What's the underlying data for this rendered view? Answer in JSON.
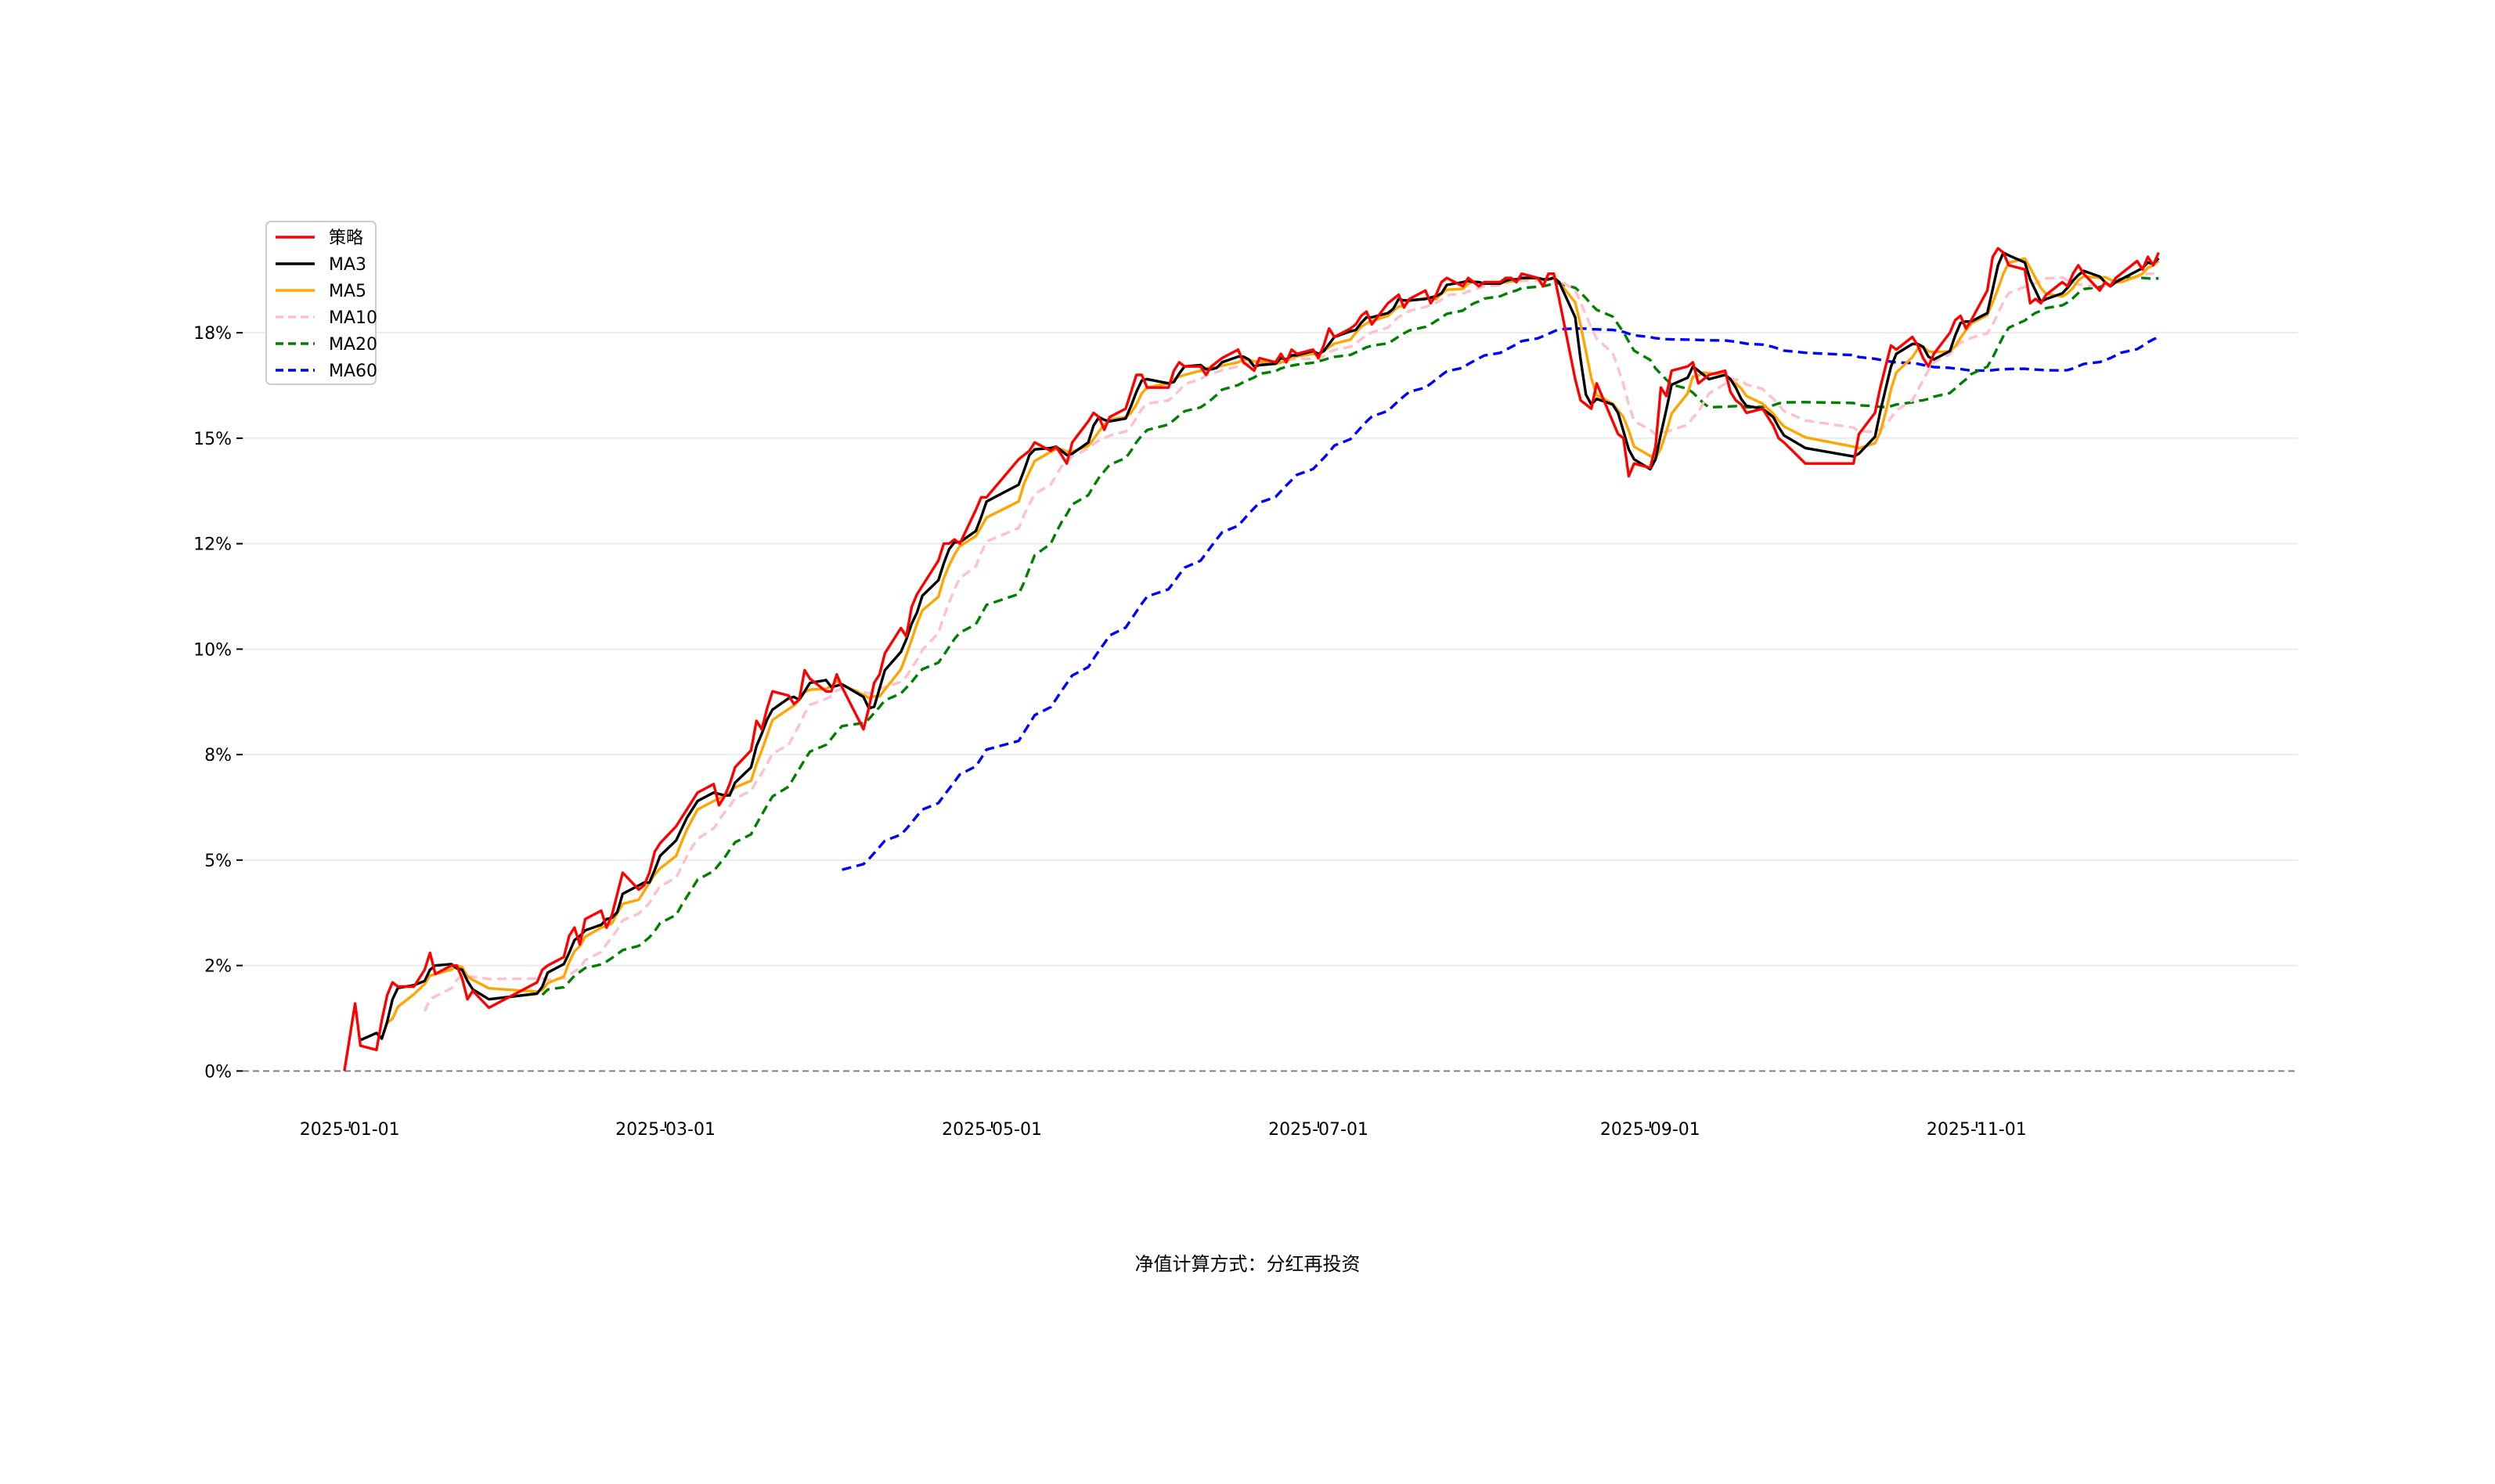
{
  "chart_data": {
    "type": "line",
    "title": "",
    "xlabel": "",
    "ylabel": "",
    "footer_note": "净值计算方式：分红再投资",
    "x_ticks": [
      "2025-01-01",
      "2025-03-01",
      "2025-05-01",
      "2025-07-01",
      "2025-09-01",
      "2025-11-01"
    ],
    "y_ticks": [
      "0%",
      "2%",
      "5%",
      "8%",
      "10%",
      "12%",
      "15%",
      "18%"
    ],
    "y_tick_values": [
      0,
      2.5,
      5,
      7.5,
      10,
      12.5,
      15,
      17.5
    ],
    "xlim": [
      "2024-12-12",
      "2025-12-31"
    ],
    "ylim": [
      -1.2,
      20.1
    ],
    "grid": "horizontal",
    "zero_line": true,
    "legend": {
      "placement": "top-left",
      "labels": [
        "策略",
        "MA3",
        "MA5",
        "MA10",
        "MA20",
        "MA60"
      ]
    },
    "series": [
      {
        "name": "策略",
        "color": "#ff0000",
        "style": "solid",
        "points": [
          [
            "2024-12-31",
            0.0
          ],
          [
            "2025-01-02",
            1.6
          ],
          [
            "2025-01-03",
            0.6
          ],
          [
            "2025-01-06",
            0.5
          ],
          [
            "2025-01-07",
            1.2
          ],
          [
            "2025-01-08",
            1.8
          ],
          [
            "2025-01-09",
            2.1
          ],
          [
            "2025-01-10",
            2.0
          ],
          [
            "2025-01-13",
            2.0
          ],
          [
            "2025-01-15",
            2.4
          ],
          [
            "2025-01-16",
            2.8
          ],
          [
            "2025-01-17",
            2.3
          ],
          [
            "2025-01-20",
            2.5
          ],
          [
            "2025-01-21",
            2.5
          ],
          [
            "2025-01-22",
            2.2
          ],
          [
            "2025-01-23",
            1.7
          ],
          [
            "2025-01-24",
            1.9
          ],
          [
            "2025-01-27",
            1.5
          ],
          [
            "2025-02-05",
            2.1
          ],
          [
            "2025-02-06",
            2.4
          ],
          [
            "2025-02-07",
            2.5
          ],
          [
            "2025-02-10",
            2.7
          ],
          [
            "2025-02-11",
            3.2
          ],
          [
            "2025-02-12",
            3.4
          ],
          [
            "2025-02-13",
            3.0
          ],
          [
            "2025-02-14",
            3.6
          ],
          [
            "2025-02-17",
            3.8
          ],
          [
            "2025-02-18",
            3.4
          ],
          [
            "2025-02-19",
            3.7
          ],
          [
            "2025-02-20",
            4.2
          ],
          [
            "2025-02-21",
            4.7
          ],
          [
            "2025-02-24",
            4.3
          ],
          [
            "2025-02-25",
            4.4
          ],
          [
            "2025-02-26",
            4.7
          ],
          [
            "2025-02-27",
            5.2
          ],
          [
            "2025-02-28",
            5.4
          ],
          [
            "2025-03-03",
            5.8
          ],
          [
            "2025-03-04",
            6.0
          ],
          [
            "2025-03-05",
            6.2
          ],
          [
            "2025-03-06",
            6.4
          ],
          [
            "2025-03-07",
            6.6
          ],
          [
            "2025-03-10",
            6.8
          ],
          [
            "2025-03-11",
            6.3
          ],
          [
            "2025-03-12",
            6.5
          ],
          [
            "2025-03-13",
            6.8
          ],
          [
            "2025-03-14",
            7.2
          ],
          [
            "2025-03-17",
            7.6
          ],
          [
            "2025-03-18",
            8.3
          ],
          [
            "2025-03-19",
            8.1
          ],
          [
            "2025-03-20",
            8.6
          ],
          [
            "2025-03-21",
            9.0
          ],
          [
            "2025-03-24",
            8.9
          ],
          [
            "2025-03-25",
            8.7
          ],
          [
            "2025-03-26",
            8.8
          ],
          [
            "2025-03-27",
            9.5
          ],
          [
            "2025-03-28",
            9.3
          ],
          [
            "2025-03-31",
            9.0
          ],
          [
            "2025-04-01",
            9.0
          ],
          [
            "2025-04-02",
            9.4
          ],
          [
            "2025-04-03",
            9.1
          ],
          [
            "2025-04-07",
            8.1
          ],
          [
            "2025-04-08",
            8.6
          ],
          [
            "2025-04-09",
            9.2
          ],
          [
            "2025-04-10",
            9.4
          ],
          [
            "2025-04-11",
            9.9
          ],
          [
            "2025-04-14",
            10.5
          ],
          [
            "2025-04-15",
            10.3
          ],
          [
            "2025-04-16",
            11.0
          ],
          [
            "2025-04-17",
            11.3
          ],
          [
            "2025-04-18",
            11.5
          ],
          [
            "2025-04-21",
            12.1
          ],
          [
            "2025-04-22",
            12.5
          ],
          [
            "2025-04-23",
            12.5
          ],
          [
            "2025-04-24",
            12.6
          ],
          [
            "2025-04-25",
            12.5
          ],
          [
            "2025-04-28",
            13.3
          ],
          [
            "2025-04-29",
            13.6
          ],
          [
            "2025-04-30",
            13.6
          ],
          [
            "2025-05-06",
            14.5
          ],
          [
            "2025-05-07",
            14.6
          ],
          [
            "2025-05-08",
            14.7
          ],
          [
            "2025-05-09",
            14.9
          ],
          [
            "2025-05-12",
            14.7
          ],
          [
            "2025-05-13",
            14.8
          ],
          [
            "2025-05-14",
            14.6
          ],
          [
            "2025-05-15",
            14.4
          ],
          [
            "2025-05-16",
            14.9
          ],
          [
            "2025-05-19",
            15.4
          ],
          [
            "2025-05-20",
            15.6
          ],
          [
            "2025-05-21",
            15.5
          ],
          [
            "2025-05-22",
            15.2
          ],
          [
            "2025-05-23",
            15.5
          ],
          [
            "2025-05-26",
            15.7
          ],
          [
            "2025-05-27",
            16.1
          ],
          [
            "2025-05-28",
            16.5
          ],
          [
            "2025-05-29",
            16.5
          ],
          [
            "2025-05-30",
            16.2
          ],
          [
            "2025-06-03",
            16.2
          ],
          [
            "2025-06-04",
            16.6
          ],
          [
            "2025-06-05",
            16.8
          ],
          [
            "2025-06-06",
            16.7
          ],
          [
            "2025-06-09",
            16.7
          ],
          [
            "2025-06-10",
            16.5
          ],
          [
            "2025-06-11",
            16.7
          ],
          [
            "2025-06-12",
            16.8
          ],
          [
            "2025-06-13",
            16.9
          ],
          [
            "2025-06-16",
            17.1
          ],
          [
            "2025-06-17",
            16.8
          ],
          [
            "2025-06-18",
            16.7
          ],
          [
            "2025-06-19",
            16.6
          ],
          [
            "2025-06-20",
            16.9
          ],
          [
            "2025-06-23",
            16.8
          ],
          [
            "2025-06-24",
            17.0
          ],
          [
            "2025-06-25",
            16.8
          ],
          [
            "2025-06-26",
            17.1
          ],
          [
            "2025-06-27",
            17.0
          ],
          [
            "2025-06-30",
            17.1
          ],
          [
            "2025-07-01",
            16.9
          ],
          [
            "2025-07-02",
            17.2
          ],
          [
            "2025-07-03",
            17.6
          ],
          [
            "2025-07-04",
            17.4
          ],
          [
            "2025-07-07",
            17.6
          ],
          [
            "2025-07-08",
            17.7
          ],
          [
            "2025-07-09",
            17.9
          ],
          [
            "2025-07-10",
            18.0
          ],
          [
            "2025-07-11",
            17.7
          ],
          [
            "2025-07-14",
            18.2
          ],
          [
            "2025-07-15",
            18.3
          ],
          [
            "2025-07-16",
            18.4
          ],
          [
            "2025-07-17",
            18.1
          ],
          [
            "2025-07-18",
            18.3
          ],
          [
            "2025-07-21",
            18.5
          ],
          [
            "2025-07-22",
            18.2
          ],
          [
            "2025-07-23",
            18.4
          ],
          [
            "2025-07-24",
            18.7
          ],
          [
            "2025-07-25",
            18.8
          ],
          [
            "2025-07-28",
            18.6
          ],
          [
            "2025-07-29",
            18.8
          ],
          [
            "2025-07-30",
            18.7
          ],
          [
            "2025-07-31",
            18.6
          ],
          [
            "2025-08-01",
            18.7
          ],
          [
            "2025-08-04",
            18.7
          ],
          [
            "2025-08-05",
            18.8
          ],
          [
            "2025-08-06",
            18.8
          ],
          [
            "2025-08-07",
            18.7
          ],
          [
            "2025-08-08",
            18.9
          ],
          [
            "2025-08-11",
            18.8
          ],
          [
            "2025-08-12",
            18.6
          ],
          [
            "2025-08-13",
            18.9
          ],
          [
            "2025-08-14",
            18.9
          ],
          [
            "2025-08-15",
            18.3
          ],
          [
            "2025-08-18",
            16.4
          ],
          [
            "2025-08-19",
            15.9
          ],
          [
            "2025-08-20",
            15.8
          ],
          [
            "2025-08-21",
            15.7
          ],
          [
            "2025-08-22",
            16.3
          ],
          [
            "2025-08-25",
            15.4
          ],
          [
            "2025-08-26",
            15.1
          ],
          [
            "2025-08-27",
            15.0
          ],
          [
            "2025-08-28",
            14.1
          ],
          [
            "2025-08-29",
            14.4
          ],
          [
            "2025-09-01",
            14.3
          ],
          [
            "2025-09-02",
            14.8
          ],
          [
            "2025-09-03",
            16.2
          ],
          [
            "2025-09-04",
            16.0
          ],
          [
            "2025-09-05",
            16.6
          ],
          [
            "2025-09-08",
            16.7
          ],
          [
            "2025-09-09",
            16.8
          ],
          [
            "2025-09-10",
            16.3
          ],
          [
            "2025-09-11",
            16.4
          ],
          [
            "2025-09-12",
            16.5
          ],
          [
            "2025-09-15",
            16.6
          ],
          [
            "2025-09-16",
            16.1
          ],
          [
            "2025-09-17",
            15.9
          ],
          [
            "2025-09-18",
            15.8
          ],
          [
            "2025-09-19",
            15.6
          ],
          [
            "2025-09-22",
            15.7
          ],
          [
            "2025-09-23",
            15.5
          ],
          [
            "2025-09-24",
            15.3
          ],
          [
            "2025-09-25",
            15.0
          ],
          [
            "2025-09-26",
            14.9
          ],
          [
            "2025-09-30",
            14.4
          ],
          [
            "2025-10-09",
            14.4
          ],
          [
            "2025-10-10",
            15.1
          ],
          [
            "2025-10-13",
            15.6
          ],
          [
            "2025-10-14",
            16.2
          ],
          [
            "2025-10-15",
            16.7
          ],
          [
            "2025-10-16",
            17.2
          ],
          [
            "2025-10-17",
            17.1
          ],
          [
            "2025-10-20",
            17.4
          ],
          [
            "2025-10-21",
            17.2
          ],
          [
            "2025-10-22",
            16.9
          ],
          [
            "2025-10-23",
            16.7
          ],
          [
            "2025-10-24",
            17.0
          ],
          [
            "2025-10-27",
            17.5
          ],
          [
            "2025-10-28",
            17.8
          ],
          [
            "2025-10-29",
            17.9
          ],
          [
            "2025-10-30",
            17.6
          ],
          [
            "2025-10-31",
            17.8
          ],
          [
            "2025-11-03",
            18.5
          ],
          [
            "2025-11-04",
            19.3
          ],
          [
            "2025-11-05",
            19.5
          ],
          [
            "2025-11-06",
            19.4
          ],
          [
            "2025-11-07",
            19.1
          ],
          [
            "2025-11-10",
            19.0
          ],
          [
            "2025-11-11",
            18.2
          ],
          [
            "2025-11-12",
            18.3
          ],
          [
            "2025-11-13",
            18.2
          ],
          [
            "2025-11-14",
            18.4
          ],
          [
            "2025-11-17",
            18.7
          ],
          [
            "2025-11-18",
            18.6
          ],
          [
            "2025-11-19",
            18.9
          ],
          [
            "2025-11-20",
            19.1
          ],
          [
            "2025-11-21",
            18.9
          ],
          [
            "2025-11-24",
            18.5
          ],
          [
            "2025-11-25",
            18.7
          ],
          [
            "2025-11-26",
            18.6
          ],
          [
            "2025-11-27",
            18.8
          ],
          [
            "2025-11-28",
            18.9
          ],
          [
            "2025-12-01",
            19.2
          ],
          [
            "2025-12-02",
            19.0
          ],
          [
            "2025-12-03",
            19.3
          ],
          [
            "2025-12-04",
            19.1
          ],
          [
            "2025-12-05",
            19.4
          ]
        ]
      },
      {
        "name": "MA3",
        "color": "#000000",
        "style": "solid",
        "window": 3
      },
      {
        "name": "MA5",
        "color": "#ffa500",
        "style": "solid",
        "window": 5
      },
      {
        "name": "MA10",
        "color": "#ffc0cb",
        "style": "dashed",
        "window": 10
      },
      {
        "name": "MA20",
        "color": "#008000",
        "style": "dashed",
        "window": 20
      },
      {
        "name": "MA60",
        "color": "#0000ff",
        "style": "dashed",
        "window": 60
      }
    ]
  }
}
